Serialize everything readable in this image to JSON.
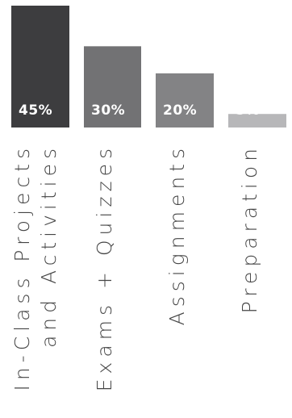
{
  "chart_data": {
    "type": "bar",
    "categories": [
      [
        "In-Class Projects",
        "and Activities"
      ],
      [
        "Exams + Quizzes"
      ],
      [
        "Assignments"
      ],
      [
        "Preparation"
      ]
    ],
    "values": [
      45,
      30,
      20,
      5
    ],
    "data_labels": [
      "45%",
      "30%",
      "20%",
      "5%"
    ],
    "colors": [
      "#3d3d3f",
      "#727274",
      "#838385",
      "#b7b7b9"
    ],
    "unit": "%",
    "ylim": [
      0,
      45
    ],
    "grid": false,
    "legend": "none",
    "title": "",
    "xlabel": "",
    "ylabel": ""
  }
}
